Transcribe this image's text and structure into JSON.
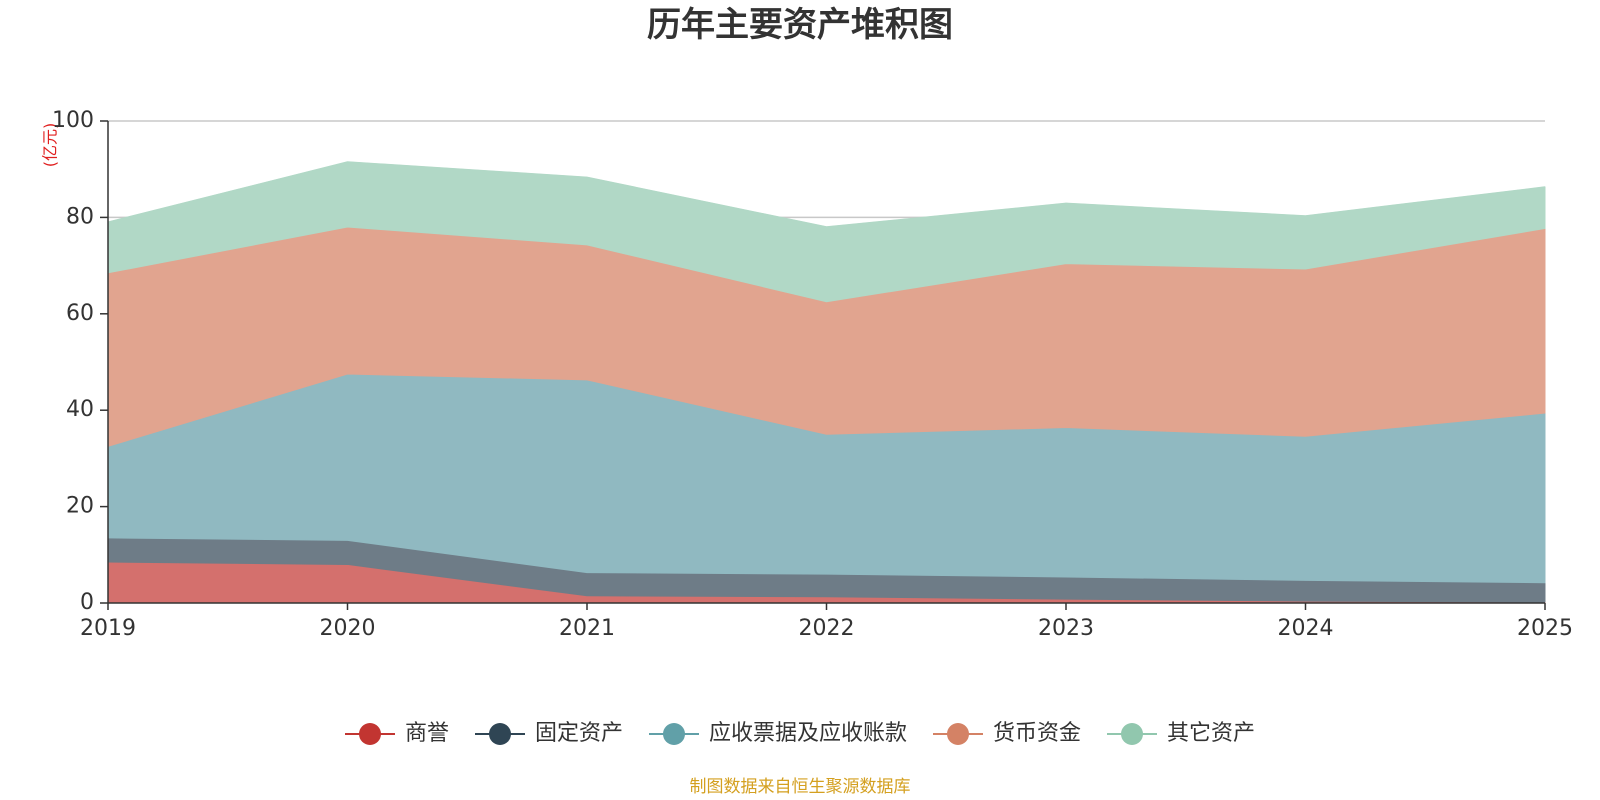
{
  "chart_data": {
    "type": "area",
    "stacked": true,
    "title": "历年主要资产堆积图",
    "ylabel": "(亿元)",
    "xlabel": "",
    "categories": [
      "2019",
      "2020",
      "2021",
      "2022",
      "2023",
      "2024",
      "2025"
    ],
    "ylim": [
      0,
      100
    ],
    "yticks": [
      0,
      20,
      40,
      60,
      80,
      100
    ],
    "grid": true,
    "legend_position": "bottom-center",
    "series": [
      {
        "name": "商誉",
        "color": "#c23531",
        "fill": "#d4706d",
        "values": [
          8.5,
          8.0,
          1.5,
          1.3,
          0.8,
          0.4,
          0.2
        ]
      },
      {
        "name": "固定资产",
        "color": "#2f4554",
        "fill": "#6e7c87",
        "values": [
          5.0,
          5.0,
          4.8,
          4.7,
          4.6,
          4.3,
          4.0
        ]
      },
      {
        "name": "应收票据及应收账款",
        "color": "#61a0a8",
        "fill": "#90b9c1",
        "values": [
          19.0,
          34.5,
          40.0,
          29.0,
          31.0,
          29.9,
          35.2
        ]
      },
      {
        "name": "货币资金",
        "color": "#d48265",
        "fill": "#e1a48f",
        "values": [
          36.0,
          30.5,
          28.0,
          27.5,
          34.0,
          34.7,
          38.3
        ]
      },
      {
        "name": "其它资产",
        "color": "#91c7ae",
        "fill": "#b1d8c6",
        "values": [
          10.5,
          13.5,
          14.0,
          15.5,
          12.5,
          11.0,
          8.6
        ]
      }
    ]
  },
  "source_note": "制图数据来自恒生聚源数据库"
}
